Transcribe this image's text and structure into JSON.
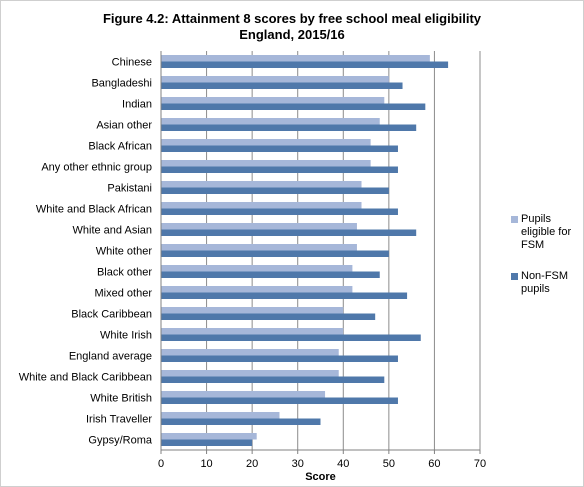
{
  "chart_data": {
    "type": "bar",
    "orientation": "horizontal",
    "title": "Figure 4.2: Attainment 8 scores by free school meal eligibility",
    "subtitle": "England, 2015/16",
    "xlabel": "Score",
    "ylabel": "",
    "xlim": [
      0,
      70
    ],
    "xticks": [
      "0",
      "10",
      "20",
      "30",
      "40",
      "50",
      "60",
      "70"
    ],
    "grid": "vertical",
    "legend_position": "right",
    "categories": [
      "Chinese",
      "Bangladeshi",
      "Indian",
      "Asian other",
      "Black African",
      "Any other ethnic group",
      "Pakistani",
      "White and Black African",
      "White and Asian",
      "White other",
      "Black other",
      "Mixed other",
      "Black Caribbean",
      "White Irish",
      "England average",
      "White and Black Caribbean",
      "White British",
      "Irish Traveller",
      "Gypsy/Roma"
    ],
    "series": [
      {
        "name": "Pupils eligible for FSM",
        "color": "#a6b7d9",
        "values": [
          59,
          50,
          49,
          48,
          46,
          46,
          44,
          44,
          43,
          43,
          42,
          42,
          40,
          40,
          39,
          39,
          36,
          26,
          21
        ]
      },
      {
        "name": "Non-FSM pupils",
        "color": "#4f78aa",
        "values": [
          63,
          53,
          58,
          56,
          52,
          52,
          50,
          52,
          56,
          50,
          48,
          54,
          47,
          57,
          52,
          49,
          52,
          35,
          20
        ]
      }
    ]
  }
}
